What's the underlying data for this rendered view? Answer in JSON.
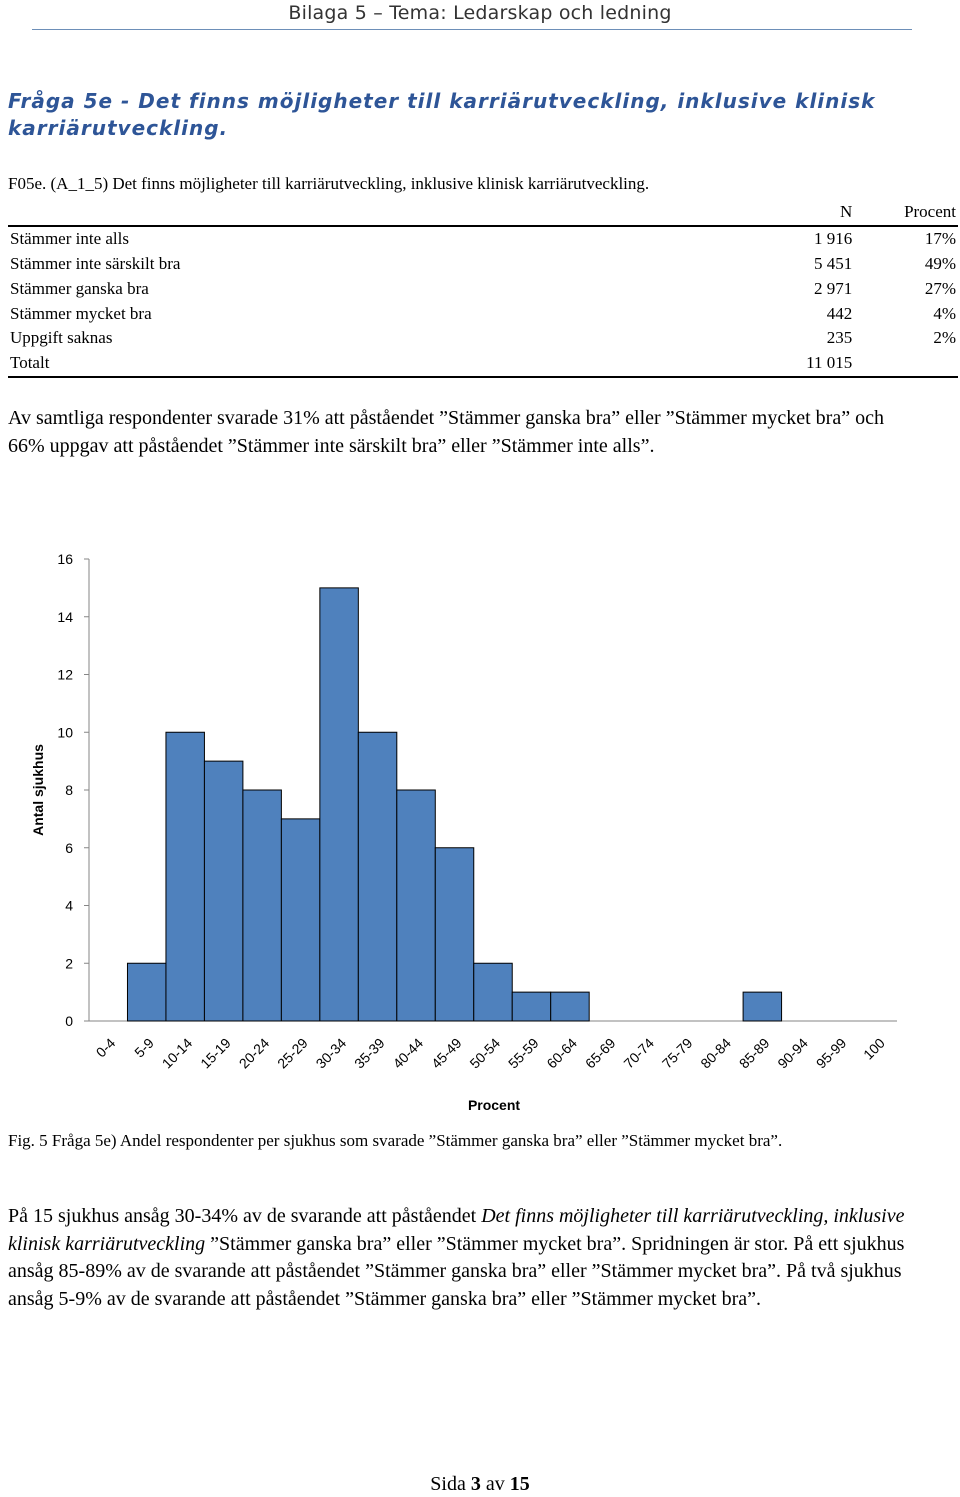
{
  "header": {
    "title": "Bilaga 5 – Tema: Ledarskap och ledning"
  },
  "question": {
    "title": "Fråga 5e - Det finns möjligheter till karriärutveckling, inklusive klinisk karriärutveckling."
  },
  "table": {
    "caption": "F05e. (A_1_5) Det finns möjligheter till karriärutveckling, inklusive klinisk karriärutveckling.",
    "col_n": "N",
    "col_percent": "Procent",
    "rows": [
      {
        "label": "Stämmer inte alls",
        "n": "1 916",
        "percent": "17%"
      },
      {
        "label": "Stämmer inte särskilt bra",
        "n": "5 451",
        "percent": "49%"
      },
      {
        "label": "Stämmer ganska bra",
        "n": "2 971",
        "percent": "27%"
      },
      {
        "label": "Stämmer mycket bra",
        "n": "442",
        "percent": "4%"
      },
      {
        "label": "Uppgift saknas",
        "n": "235",
        "percent": "2%"
      }
    ],
    "total_label": "Totalt",
    "total_n": "11 015"
  },
  "summary": "Av samtliga respondenter svarade 31% att påståendet ”Stämmer ganska bra” eller ”Stämmer mycket bra” och 66% uppgav att påståendet ”Stämmer inte särskilt bra” eller ”Stämmer inte alls”.",
  "chart_data": {
    "type": "bar",
    "categories": [
      "0-4",
      "5-9",
      "10-14",
      "15-19",
      "20-24",
      "25-29",
      "30-34",
      "35-39",
      "40-44",
      "45-49",
      "50-54",
      "55-59",
      "60-64",
      "65-69",
      "70-74",
      "75-79",
      "80-84",
      "85-89",
      "90-94",
      "95-99",
      "100"
    ],
    "values": [
      0,
      2,
      10,
      9,
      8,
      7,
      15,
      10,
      8,
      6,
      2,
      1,
      1,
      0,
      0,
      0,
      0,
      1,
      0,
      0,
      0
    ],
    "xlabel": "Procent",
    "ylabel": "Antal sjukhus",
    "ylim": [
      0,
      16
    ],
    "yticks": [
      0,
      2,
      4,
      6,
      8,
      10,
      12,
      14,
      16
    ],
    "bar_color": "#4f81bd",
    "grid": false
  },
  "figure_caption": "Fig. 5 Fråga 5e) Andel respondenter per sjukhus som svarade ”Stämmer ganska bra” eller ”Stämmer mycket bra”.",
  "conclusion": {
    "part1": "På 15 sjukhus ansåg 30-34% av de svarande att påståendet ",
    "italic": "Det finns möjligheter till karriärutveckling, inklusive klinisk karriärutveckling",
    "part2": " ”Stämmer ganska bra” eller ”Stämmer mycket bra”. Spridningen är stor. På ett sjukhus ansåg 85-89% av de svarande att påståendet ”Stämmer ganska bra” eller ”Stämmer mycket bra”. På två sjukhus ansåg 5-9% av de svarande att påståendet ”Stämmer ganska bra” eller ”Stämmer mycket bra”."
  },
  "footer": {
    "prefix": "Sida ",
    "page": "3",
    "middle": " av ",
    "total": "15"
  }
}
